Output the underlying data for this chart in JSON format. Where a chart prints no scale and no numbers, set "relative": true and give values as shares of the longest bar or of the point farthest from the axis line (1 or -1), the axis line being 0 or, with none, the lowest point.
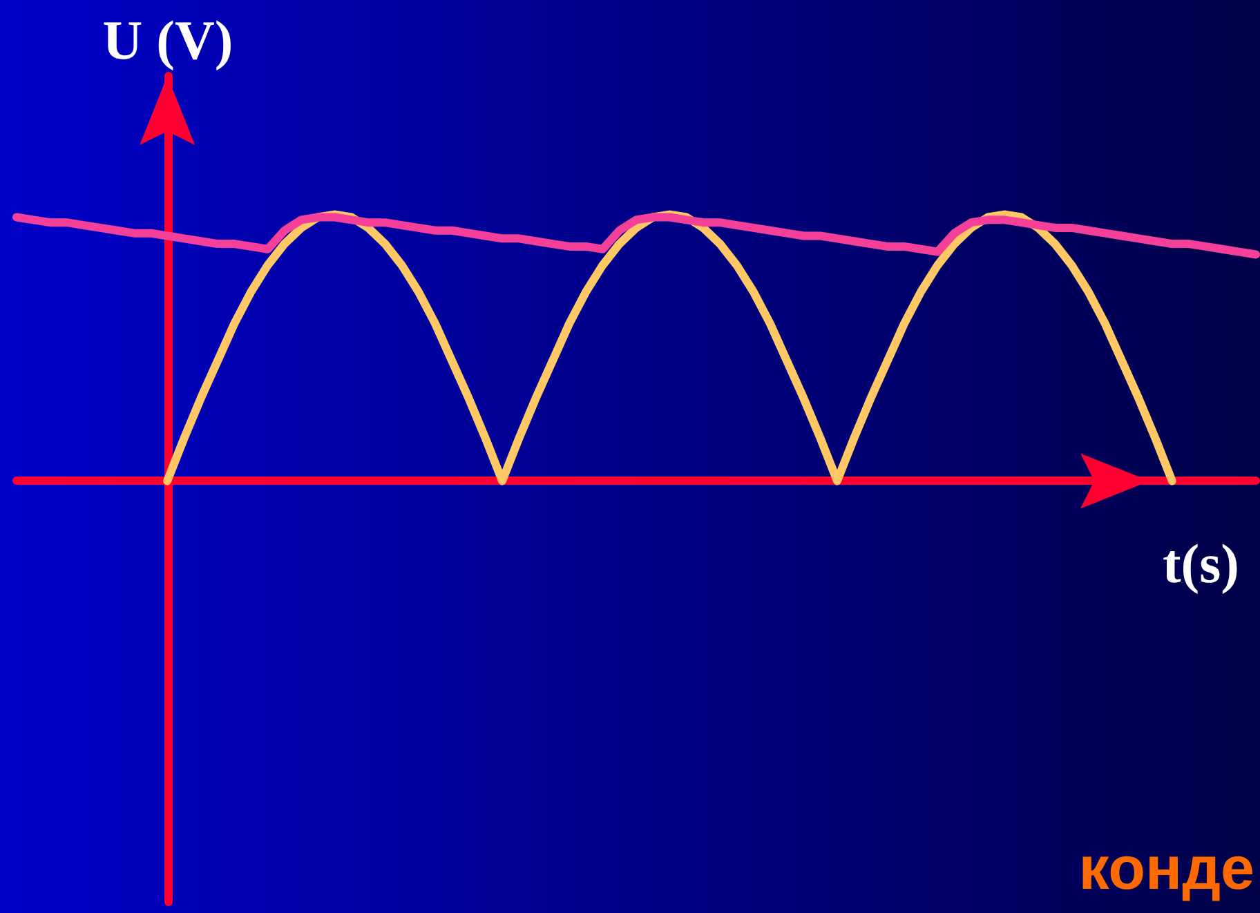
{
  "chart_data": {
    "type": "line",
    "relative": true,
    "xlabel": "t(s)",
    "ylabel": "U (V)",
    "marker": "none",
    "annotations": [
      "конде"
    ],
    "categories": [
      null,
      null,
      null,
      null,
      null,
      null,
      null,
      null,
      null,
      null,
      null,
      null,
      null,
      null,
      null,
      null,
      null,
      null,
      null,
      null,
      null,
      null,
      null,
      null,
      null,
      null,
      null,
      null,
      null,
      null,
      null,
      null,
      null,
      null,
      null,
      null,
      null,
      null,
      null,
      null,
      null,
      null,
      null,
      null,
      null,
      null,
      null,
      null,
      null,
      null,
      null,
      null,
      null,
      null,
      null,
      null,
      null,
      null,
      null,
      null,
      null,
      null,
      null,
      null,
      null,
      null,
      null,
      null,
      null,
      null,
      null,
      null,
      null,
      null,
      null
    ],
    "series": [
      {
        "color": "#ffc864",
        "values": [
          null,
          null,
          null,
          null,
          null,
          null,
          null,
          null,
          null,
          0,
          0.16,
          0.31,
          0.45,
          0.59,
          0.71,
          0.81,
          0.89,
          0.95,
          0.99,
          1,
          0.99,
          0.95,
          0.89,
          0.81,
          0.71,
          0.59,
          0.45,
          0.31,
          0.16,
          0,
          0.16,
          0.31,
          0.45,
          0.59,
          0.71,
          0.81,
          0.89,
          0.95,
          0.99,
          1,
          0.99,
          0.95,
          0.89,
          0.81,
          0.71,
          0.59,
          0.45,
          0.31,
          0.16,
          0,
          0.16,
          0.31,
          0.45,
          0.59,
          0.71,
          0.81,
          0.89,
          0.95,
          0.99,
          1,
          0.99,
          0.95,
          0.89,
          0.81,
          0.71,
          0.59,
          0.45,
          0.31,
          0.16,
          0,
          null,
          null,
          null,
          null,
          null
        ]
      },
      {
        "color": "#f5409a",
        "values": [
          0.99,
          0.98,
          0.97,
          0.97,
          0.96,
          0.95,
          0.94,
          0.93,
          0.93,
          0.92,
          0.91,
          0.9,
          0.89,
          0.89,
          0.88,
          0.87,
          0.94,
          0.98,
          0.99,
          0.99,
          0.98,
          0.97,
          0.97,
          0.96,
          0.95,
          0.94,
          0.94,
          0.93,
          0.92,
          0.91,
          0.91,
          0.9,
          0.89,
          0.88,
          0.88,
          0.87,
          0.94,
          0.98,
          0.99,
          0.99,
          0.98,
          0.97,
          0.97,
          0.96,
          0.95,
          0.94,
          0.93,
          0.92,
          0.92,
          0.91,
          0.9,
          0.89,
          0.88,
          0.88,
          0.87,
          0.86,
          0.93,
          0.97,
          0.98,
          0.98,
          0.97,
          0.96,
          0.95,
          0.95,
          0.94,
          0.93,
          0.92,
          0.91,
          0.9,
          0.89,
          0.89,
          0.88,
          0.87,
          0.86,
          0.85
        ]
      }
    ]
  }
}
